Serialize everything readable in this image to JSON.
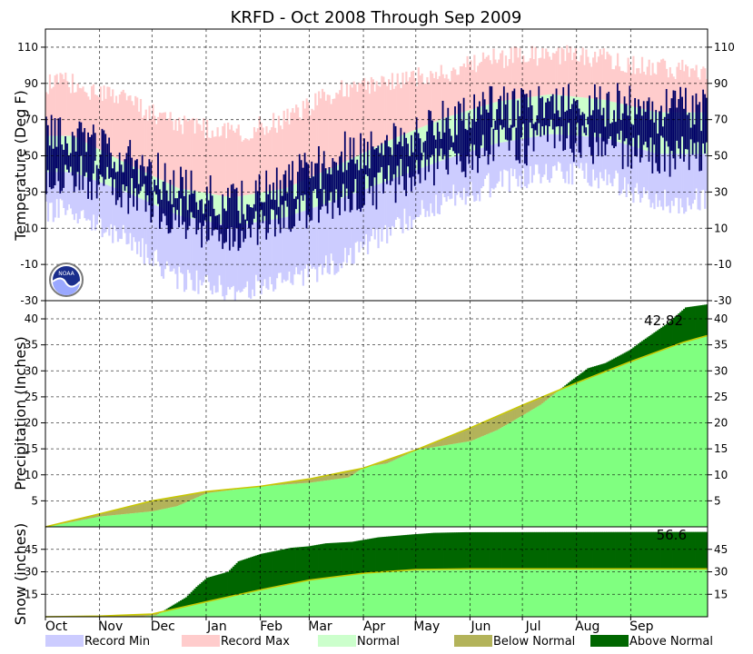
{
  "chart_data": {
    "type": "climate-summary",
    "title": "KRFD - Oct 2008 Through Sep 2009",
    "months": [
      "Oct",
      "Nov",
      "Dec",
      "Jan",
      "Feb",
      "Mar",
      "Apr",
      "May",
      "Jun",
      "Jul",
      "Aug",
      "Sep"
    ],
    "month_days": [
      31,
      30,
      31,
      31,
      28,
      31,
      30,
      31,
      30,
      31,
      31,
      30
    ],
    "temperature": {
      "ylabel": "Temperature (Deg F)",
      "ylim": [
        -30,
        120
      ],
      "ticks": [
        -30,
        -10,
        10,
        30,
        50,
        70,
        90,
        110
      ],
      "monthly": {
        "record_max": [
          90,
          80,
          68,
          62,
          70,
          86,
          90,
          96,
          104,
          106,
          104,
          98
        ],
        "normal_high": [
          61,
          46,
          32,
          27,
          32,
          45,
          59,
          71,
          80,
          84,
          81,
          74
        ],
        "normal_low": [
          41,
          30,
          17,
          11,
          16,
          26,
          37,
          48,
          57,
          62,
          60,
          51
        ],
        "record_min": [
          20,
          5,
          -18,
          -24,
          -20,
          -8,
          10,
          26,
          35,
          42,
          38,
          25
        ],
        "observed_high": [
          60,
          50,
          33,
          22,
          34,
          50,
          60,
          68,
          78,
          78,
          78,
          75
        ],
        "observed_low": [
          40,
          30,
          15,
          3,
          15,
          25,
          35,
          45,
          55,
          58,
          57,
          50
        ]
      }
    },
    "precipitation": {
      "ylabel": "Precipitation (Inches)",
      "ylim": [
        0,
        43.5
      ],
      "ticks": [
        5,
        10,
        15,
        20,
        25,
        30,
        35,
        40
      ],
      "total_label": "42.82",
      "actual": [
        [
          0,
          0
        ],
        [
          31,
          2.0
        ],
        [
          61,
          3.0
        ],
        [
          75,
          4.0
        ],
        [
          92,
          6.5
        ],
        [
          123,
          7.8
        ],
        [
          151,
          8.5
        ],
        [
          173,
          9.5
        ],
        [
          182,
          11.5
        ],
        [
          195,
          12.2
        ],
        [
          212,
          14.8
        ],
        [
          225,
          15.5
        ],
        [
          243,
          16.5
        ],
        [
          258,
          18.6
        ],
        [
          273,
          21.5
        ],
        [
          283,
          23.5
        ],
        [
          300,
          28.0
        ],
        [
          310,
          30.5
        ],
        [
          320,
          31.5
        ],
        [
          334,
          34.0
        ],
        [
          340,
          35.5
        ],
        [
          355,
          39.0
        ],
        [
          366,
          42.2
        ],
        [
          379,
          42.82
        ]
      ],
      "normal": [
        [
          0,
          0
        ],
        [
          31,
          2.5
        ],
        [
          61,
          5.0
        ],
        [
          92,
          6.8
        ],
        [
          123,
          7.8
        ],
        [
          151,
          9.2
        ],
        [
          182,
          11.3
        ],
        [
          212,
          14.8
        ],
        [
          243,
          19.0
        ],
        [
          273,
          23.4
        ],
        [
          304,
          27.7
        ],
        [
          335,
          31.8
        ],
        [
          365,
          35.5
        ],
        [
          379,
          36.8
        ]
      ]
    },
    "snow": {
      "ylabel": "Snow (inches)",
      "ylim": [
        0,
        60
      ],
      "ticks": [
        15,
        30,
        45
      ],
      "total_label": "56.6",
      "actual": [
        [
          0,
          0
        ],
        [
          52,
          0
        ],
        [
          63,
          1
        ],
        [
          70,
          6
        ],
        [
          80,
          13
        ],
        [
          86,
          20
        ],
        [
          92,
          26
        ],
        [
          104,
          30
        ],
        [
          110,
          37
        ],
        [
          123,
          42
        ],
        [
          140,
          46
        ],
        [
          150,
          47
        ],
        [
          160,
          49
        ],
        [
          175,
          50
        ],
        [
          190,
          53
        ],
        [
          210,
          55
        ],
        [
          222,
          56
        ],
        [
          240,
          56.4
        ],
        [
          379,
          56.6
        ]
      ],
      "normal": [
        [
          0,
          0
        ],
        [
          31,
          0.5
        ],
        [
          61,
          1.8
        ],
        [
          92,
          10
        ],
        [
          123,
          18
        ],
        [
          151,
          24.5
        ],
        [
          182,
          29
        ],
        [
          212,
          31.5
        ],
        [
          243,
          32
        ],
        [
          379,
          32
        ]
      ]
    },
    "legend": [
      {
        "label": "Record Min",
        "color": "#ccccff"
      },
      {
        "label": "Record Max",
        "color": "#ffcccc"
      },
      {
        "label": "Normal",
        "color": "#ccffcc"
      },
      {
        "label": "Below Normal",
        "color": "#b3b35a"
      },
      {
        "label": "Above Normal",
        "color": "#006600"
      }
    ],
    "colors": {
      "record_min": "#ccccff",
      "record_max": "#ffcccc",
      "normal": "#ccffcc",
      "observed": "#000066",
      "precip_normal": "#80ff80",
      "below_normal": "#b3b35a",
      "above_normal": "#006600",
      "normal_line": "#c8c800"
    },
    "logo_label": "NOAA"
  }
}
